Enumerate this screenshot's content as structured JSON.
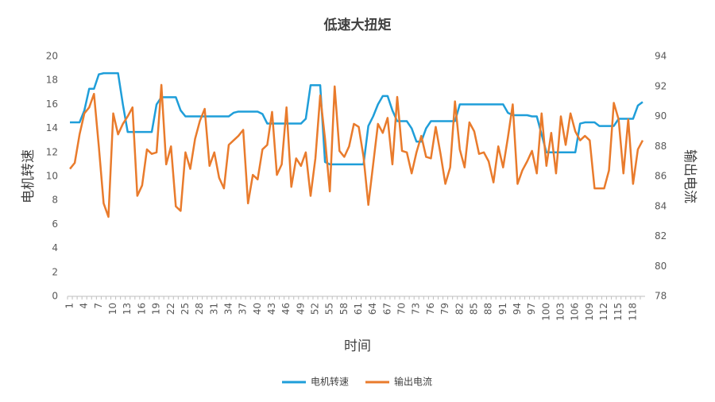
{
  "chart_data": {
    "type": "line",
    "title": "低速大扭矩",
    "xlabel": "时间",
    "ylabel": "电机转速",
    "y2label": "输出电流",
    "categories": [
      1,
      null,
      null,
      4,
      null,
      null,
      7,
      null,
      null,
      10,
      null,
      null,
      13,
      null,
      null,
      16,
      null,
      null,
      19,
      null,
      null,
      22,
      null,
      null,
      25,
      null,
      null,
      28,
      null,
      null,
      31,
      null,
      null,
      34,
      null,
      null,
      37,
      null,
      null,
      40,
      null,
      null,
      43,
      null,
      null,
      46,
      null,
      null,
      49,
      null,
      null,
      52,
      null,
      null,
      55,
      null,
      null,
      58,
      null,
      null,
      61,
      null,
      null,
      64,
      null,
      null,
      67,
      null,
      null,
      70,
      null,
      null,
      73,
      null,
      null,
      76,
      null,
      null,
      79,
      null,
      null,
      82,
      null,
      null,
      85,
      null,
      null,
      88,
      null,
      null,
      91,
      null,
      null,
      94,
      null,
      null,
      97,
      null,
      null,
      100,
      null,
      null,
      103,
      null,
      null,
      106,
      null,
      null,
      109,
      null,
      null,
      112,
      null,
      null,
      115,
      null,
      null,
      118,
      null,
      null
    ],
    "ylim": [
      0,
      20
    ],
    "yticks": [
      0,
      2,
      4,
      6,
      8,
      10,
      12,
      14,
      16,
      18,
      20
    ],
    "y2lim": [
      78,
      94
    ],
    "y2ticks": [
      78,
      80,
      82,
      84,
      86,
      88,
      90,
      92,
      94
    ],
    "grid": false,
    "legend": "bottom",
    "series": [
      {
        "name": "电机转速",
        "color": "#1f9ed9",
        "values": [
          14.5,
          14.5,
          14.5,
          15.5,
          17.3,
          17.3,
          18.5,
          18.6,
          18.6,
          18.6,
          18.6,
          16,
          13.7,
          13.7,
          13.7,
          13.7,
          13.7,
          13.7,
          16,
          16.6,
          16.6,
          16.6,
          16.6,
          15.5,
          15,
          15,
          15,
          15,
          15,
          15,
          15,
          15,
          15,
          15,
          15.3,
          15.4,
          15.4,
          15.4,
          15.4,
          15.4,
          15.2,
          14.4,
          14.4,
          14.4,
          14.4,
          14.4,
          14.4,
          14.4,
          14.4,
          14.8,
          17.6,
          17.6,
          17.6,
          11.2,
          11,
          11,
          11,
          11,
          11,
          11,
          11,
          11,
          14.2,
          15,
          16,
          16.7,
          16.7,
          15.5,
          14.6,
          14.6,
          14.6,
          14,
          12.9,
          12.9,
          14,
          14.6,
          14.6,
          14.6,
          14.6,
          14.6,
          14.6,
          16,
          16,
          16,
          16,
          16,
          16,
          16,
          16,
          16,
          16,
          15.3,
          15.1,
          15.1,
          15.1,
          15.1,
          15,
          15,
          13.5,
          12,
          12,
          12,
          12,
          12,
          12,
          12,
          14.4,
          14.5,
          14.5,
          14.5,
          14.2,
          14.2,
          14.2,
          14.2,
          14.8,
          14.8,
          14.8,
          14.8,
          15.9,
          16.2
        ]
      },
      {
        "name": "输出电流",
        "color": "#e97b2c",
        "axis": "y2",
        "values": [
          86.5,
          86.9,
          88.8,
          90.2,
          90.6,
          91.5,
          88,
          84.2,
          83.3,
          90.2,
          88.8,
          89.5,
          90,
          90.6,
          84.7,
          85.4,
          87.8,
          87.5,
          87.6,
          92.1,
          86.8,
          88,
          84,
          83.7,
          87.6,
          86.5,
          88.5,
          89.7,
          90.5,
          86.7,
          87.6,
          85.9,
          85.2,
          88.1,
          88.4,
          88.7,
          89.1,
          84.2,
          86.1,
          85.8,
          87.8,
          88.1,
          90.3,
          86.1,
          86.8,
          90.6,
          85.3,
          87.2,
          86.7,
          87.6,
          84.7,
          87.2,
          91.4,
          88.5,
          85,
          92,
          87.7,
          87.3,
          88,
          89.5,
          89.3,
          87.3,
          84.1,
          86.8,
          89.5,
          88.9,
          89.9,
          86.8,
          91.3,
          87.7,
          87.6,
          86.2,
          87.6,
          88.7,
          87.3,
          87.2,
          89.3,
          87.5,
          85.5,
          86.6,
          91,
          87.8,
          86.6,
          89.6,
          89,
          87.5,
          87.6,
          87,
          85.6,
          88,
          86.6,
          88.6,
          90.8,
          85.5,
          86.4,
          87,
          87.7,
          86.2,
          90.2,
          86.7,
          88.9,
          86.2,
          90,
          88.1,
          90.2,
          89,
          88.4,
          88.7,
          88.4,
          85.2,
          85.2,
          85.2,
          86.4,
          90.9,
          89.8,
          86.2,
          89.8,
          85.5,
          87.8,
          88.4
        ]
      }
    ]
  }
}
